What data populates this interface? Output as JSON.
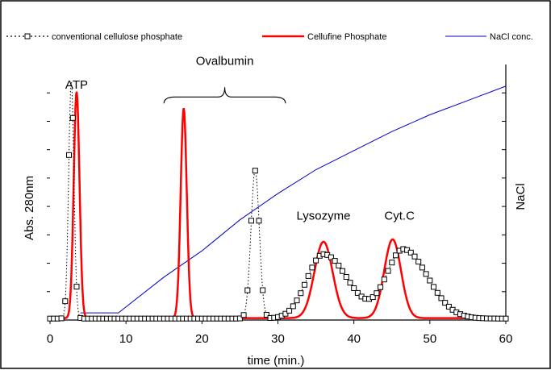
{
  "chart_data": {
    "type": "line",
    "xlabel": "time (min.)",
    "ylabel_left": "Abs. 280nm",
    "ylabel_right": "NaCl",
    "xlim": [
      0,
      60
    ],
    "ylim": [
      0,
      1
    ],
    "xticks": [
      0,
      10,
      20,
      30,
      40,
      50,
      60
    ],
    "right_axis_tick_count": 8,
    "left_axis_tick_count": 8,
    "legend": {
      "placement": "top",
      "entries": [
        {
          "label": "conventional cellulose phosphate",
          "series": 0
        },
        {
          "label": "Cellufine Phosphate",
          "series": 1
        },
        {
          "label": "NaCl conc.",
          "series": 2
        }
      ]
    },
    "annotations": [
      {
        "text": "ATP",
        "x": 3.5,
        "y": 0.97
      },
      {
        "text": "Ovalbumin",
        "x": 23,
        "y": 1.07,
        "bracket": [
          15,
          31
        ]
      },
      {
        "text": "Lysozyme",
        "x": 36,
        "y": 0.42
      },
      {
        "text": "Cyt.C",
        "x": 46,
        "y": 0.42
      }
    ],
    "series": [
      {
        "name": "conventional cellulose phosphate",
        "color": "#000000",
        "style": "dotted-square-markers",
        "baseline": 0.006,
        "peaks": [
          {
            "center": 2.8,
            "height": 0.99,
            "sigma": 0.35
          },
          {
            "center": 27.0,
            "height": 0.62,
            "sigma": 0.55
          },
          {
            "center": 36.0,
            "height": 0.27,
            "sigma": 2.2,
            "tail": 3.2
          },
          {
            "center": 46.5,
            "height": 0.29,
            "sigma": 2.2,
            "tail": 3.2
          }
        ]
      },
      {
        "name": "Cellufine Phosphate",
        "color": "#ff0000",
        "style": "solid",
        "baseline": 0.008,
        "peaks": [
          {
            "center": 3.5,
            "height": 0.95,
            "sigma": 0.38
          },
          {
            "center": 17.6,
            "height": 0.88,
            "sigma": 0.4
          },
          {
            "center": 36.0,
            "height": 0.32,
            "sigma": 1.2
          },
          {
            "center": 45.1,
            "height": 0.33,
            "sigma": 1.1
          }
        ]
      },
      {
        "name": "NaCl conc.",
        "color": "#0000cc",
        "style": "solid",
        "points": [
          [
            4,
            0.03
          ],
          [
            9,
            0.03
          ],
          [
            15,
            0.18
          ],
          [
            20,
            0.29
          ],
          [
            25,
            0.42
          ],
          [
            30,
            0.53
          ],
          [
            35,
            0.63
          ],
          [
            40,
            0.71
          ],
          [
            45,
            0.79
          ],
          [
            50,
            0.86
          ],
          [
            55,
            0.92
          ],
          [
            60,
            0.98
          ]
        ]
      }
    ]
  }
}
